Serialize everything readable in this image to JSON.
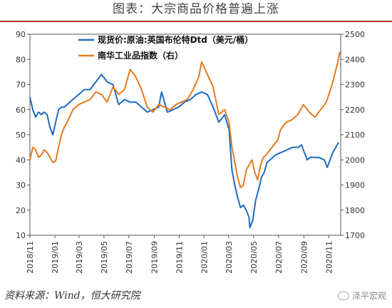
{
  "title": "图表：大宗商品价格普遍上涨",
  "source": "资料来源：Wind，恒大研究院",
  "watermark": "泽平宏观",
  "colors": {
    "blue": "#1f6bbf",
    "orange": "#e57a1e",
    "title_rule": "#b0352b"
  },
  "chart_data": {
    "type": "line",
    "x_ticks": [
      "2018/11",
      "2019/01",
      "2019/03",
      "2019/05",
      "2019/07",
      "2019/09",
      "2019/11",
      "2020/01",
      "2020/03",
      "2020/05",
      "2020/07",
      "2020/09",
      "2020/11"
    ],
    "y_left": {
      "lim": [
        10,
        90
      ],
      "ticks": [
        10,
        20,
        30,
        40,
        50,
        60,
        70,
        80,
        90
      ]
    },
    "y_right": {
      "lim": [
        1700,
        2500
      ],
      "ticks": [
        1700,
        1800,
        1900,
        2000,
        2100,
        2200,
        2300,
        2400,
        2500
      ]
    },
    "legend_position": "top",
    "series": [
      {
        "name": "现货价:原油:英国布伦特Dtd（美元/桶）",
        "axis": "left",
        "color": "#1f6bbf",
        "points": [
          [
            "2018-11-01",
            65
          ],
          [
            "2018-11-08",
            60
          ],
          [
            "2018-11-15",
            57
          ],
          [
            "2018-11-22",
            59
          ],
          [
            "2018-11-29",
            58
          ],
          [
            "2018-12-06",
            59
          ],
          [
            "2018-12-13",
            58
          ],
          [
            "2018-12-20",
            53
          ],
          [
            "2018-12-27",
            50
          ],
          [
            "2019-01-03",
            55
          ],
          [
            "2019-01-10",
            60
          ],
          [
            "2019-01-17",
            61
          ],
          [
            "2019-01-24",
            61
          ],
          [
            "2019-01-31",
            62
          ],
          [
            "2019-02-14",
            64
          ],
          [
            "2019-02-28",
            66
          ],
          [
            "2019-03-14",
            68
          ],
          [
            "2019-03-28",
            68
          ],
          [
            "2019-04-11",
            71
          ],
          [
            "2019-04-25",
            74
          ],
          [
            "2019-05-09",
            71
          ],
          [
            "2019-05-23",
            70
          ],
          [
            "2019-06-06",
            62
          ],
          [
            "2019-06-20",
            64
          ],
          [
            "2019-07-04",
            63
          ],
          [
            "2019-07-18",
            63
          ],
          [
            "2019-08-01",
            61
          ],
          [
            "2019-08-15",
            59
          ],
          [
            "2019-08-29",
            60
          ],
          [
            "2019-09-12",
            61
          ],
          [
            "2019-09-19",
            67
          ],
          [
            "2019-10-03",
            59
          ],
          [
            "2019-10-17",
            60
          ],
          [
            "2019-10-31",
            61
          ],
          [
            "2019-11-14",
            63
          ],
          [
            "2019-11-28",
            64
          ],
          [
            "2019-12-12",
            66
          ],
          [
            "2019-12-26",
            67
          ],
          [
            "2020-01-09",
            66
          ],
          [
            "2020-01-23",
            61
          ],
          [
            "2020-02-06",
            55
          ],
          [
            "2020-02-20",
            58
          ],
          [
            "2020-03-02",
            52
          ],
          [
            "2020-03-09",
            36
          ],
          [
            "2020-03-16",
            30
          ],
          [
            "2020-03-23",
            25
          ],
          [
            "2020-03-30",
            21
          ],
          [
            "2020-04-06",
            22
          ],
          [
            "2020-04-13",
            20
          ],
          [
            "2020-04-20",
            17
          ],
          [
            "2020-04-22",
            13
          ],
          [
            "2020-04-29",
            16
          ],
          [
            "2020-05-06",
            24
          ],
          [
            "2020-05-13",
            28
          ],
          [
            "2020-05-20",
            33
          ],
          [
            "2020-05-27",
            35
          ],
          [
            "2020-06-03",
            39
          ],
          [
            "2020-06-10",
            40
          ],
          [
            "2020-06-17",
            41
          ],
          [
            "2020-06-24",
            42
          ],
          [
            "2020-07-08",
            43
          ],
          [
            "2020-07-22",
            44
          ],
          [
            "2020-08-05",
            45
          ],
          [
            "2020-08-19",
            45
          ],
          [
            "2020-08-26",
            46
          ],
          [
            "2020-09-02",
            43
          ],
          [
            "2020-09-09",
            40
          ],
          [
            "2020-09-16",
            41
          ],
          [
            "2020-09-23",
            41
          ],
          [
            "2020-10-07",
            41
          ],
          [
            "2020-10-21",
            40
          ],
          [
            "2020-10-28",
            37
          ],
          [
            "2020-11-04",
            40
          ],
          [
            "2020-11-11",
            43
          ],
          [
            "2020-11-18",
            45
          ],
          [
            "2020-11-25",
            47
          ]
        ]
      },
      {
        "name": "南华工业品指数（右）",
        "axis": "right",
        "color": "#e57a1e",
        "points": [
          [
            "2018-11-01",
            2000
          ],
          [
            "2018-11-08",
            2050
          ],
          [
            "2018-11-15",
            2040
          ],
          [
            "2018-11-22",
            2010
          ],
          [
            "2018-11-29",
            2020
          ],
          [
            "2018-12-06",
            2040
          ],
          [
            "2018-12-13",
            2030
          ],
          [
            "2018-12-20",
            2010
          ],
          [
            "2018-12-27",
            1990
          ],
          [
            "2019-01-03",
            1995
          ],
          [
            "2019-01-10",
            2050
          ],
          [
            "2019-01-17",
            2100
          ],
          [
            "2019-01-24",
            2130
          ],
          [
            "2019-01-31",
            2150
          ],
          [
            "2019-02-14",
            2200
          ],
          [
            "2019-02-28",
            2220
          ],
          [
            "2019-03-14",
            2230
          ],
          [
            "2019-03-28",
            2240
          ],
          [
            "2019-04-11",
            2270
          ],
          [
            "2019-04-25",
            2260
          ],
          [
            "2019-05-09",
            2230
          ],
          [
            "2019-05-23",
            2290
          ],
          [
            "2019-06-06",
            2260
          ],
          [
            "2019-06-20",
            2280
          ],
          [
            "2019-07-04",
            2360
          ],
          [
            "2019-07-18",
            2330
          ],
          [
            "2019-08-01",
            2280
          ],
          [
            "2019-08-15",
            2210
          ],
          [
            "2019-08-29",
            2190
          ],
          [
            "2019-09-12",
            2220
          ],
          [
            "2019-09-26",
            2210
          ],
          [
            "2019-10-10",
            2200
          ],
          [
            "2019-10-24",
            2220
          ],
          [
            "2019-11-07",
            2230
          ],
          [
            "2019-11-21",
            2240
          ],
          [
            "2019-12-05",
            2280
          ],
          [
            "2019-12-19",
            2330
          ],
          [
            "2019-12-26",
            2390
          ],
          [
            "2020-01-09",
            2340
          ],
          [
            "2020-01-23",
            2290
          ],
          [
            "2020-02-06",
            2180
          ],
          [
            "2020-02-20",
            2200
          ],
          [
            "2020-03-02",
            2150
          ],
          [
            "2020-03-09",
            2050
          ],
          [
            "2020-03-16",
            1990
          ],
          [
            "2020-03-23",
            1930
          ],
          [
            "2020-03-30",
            1890
          ],
          [
            "2020-04-06",
            1900
          ],
          [
            "2020-04-13",
            1960
          ],
          [
            "2020-04-20",
            1980
          ],
          [
            "2020-04-27",
            2000
          ],
          [
            "2020-05-04",
            1950
          ],
          [
            "2020-05-11",
            1920
          ],
          [
            "2020-05-18",
            1980
          ],
          [
            "2020-05-25",
            2010
          ],
          [
            "2020-06-01",
            2020
          ],
          [
            "2020-06-15",
            2050
          ],
          [
            "2020-06-29",
            2080
          ],
          [
            "2020-07-06",
            2120
          ],
          [
            "2020-07-20",
            2150
          ],
          [
            "2020-08-03",
            2160
          ],
          [
            "2020-08-17",
            2180
          ],
          [
            "2020-08-31",
            2220
          ],
          [
            "2020-09-14",
            2190
          ],
          [
            "2020-09-28",
            2170
          ],
          [
            "2020-10-12",
            2200
          ],
          [
            "2020-10-26",
            2230
          ],
          [
            "2020-11-09",
            2300
          ],
          [
            "2020-11-23",
            2390
          ],
          [
            "2020-11-28",
            2430
          ]
        ]
      }
    ]
  }
}
